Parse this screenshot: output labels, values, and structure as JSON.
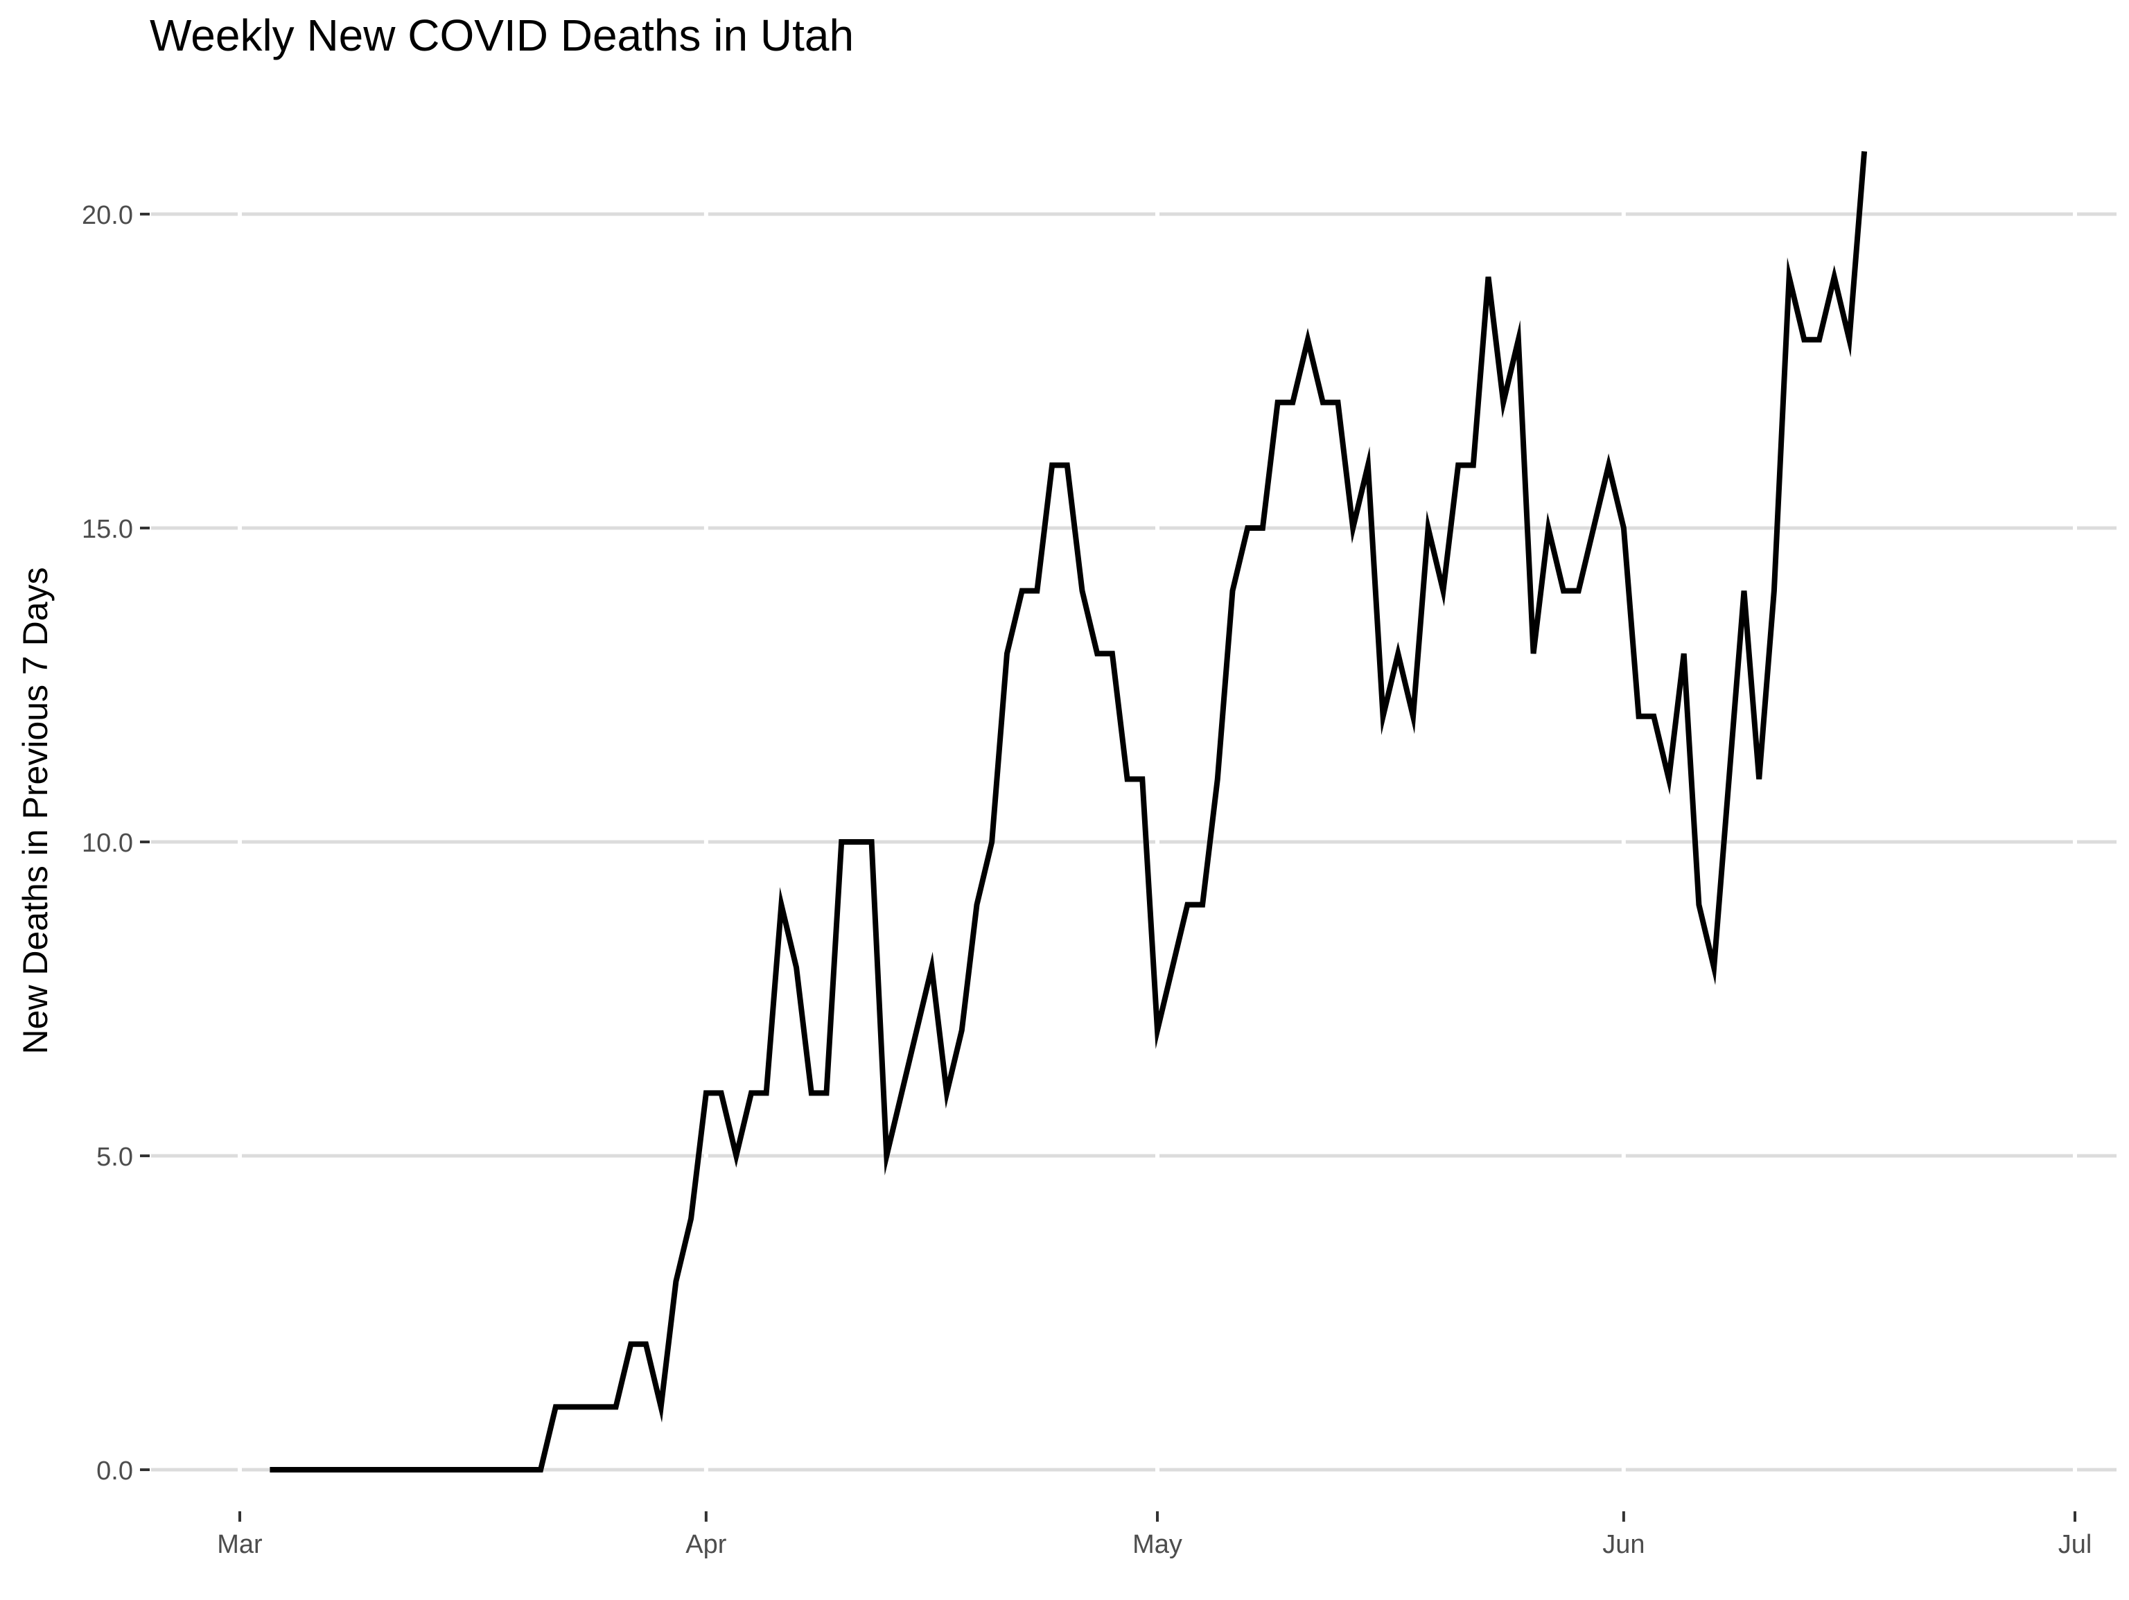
{
  "chart_data": {
    "type": "line",
    "title": "Weekly New COVID Deaths in Utah",
    "xlabel": "",
    "ylabel": "New Deaths in Previous 7 Days",
    "xlim": [
      "2020-02-27",
      "2020-07-04"
    ],
    "ylim": [
      0,
      21
    ],
    "x_ticks": [
      {
        "date": "2020-03-01",
        "label": "Mar"
      },
      {
        "date": "2020-04-01",
        "label": "Apr"
      },
      {
        "date": "2020-05-01",
        "label": "May"
      },
      {
        "date": "2020-06-01",
        "label": "Jun"
      },
      {
        "date": "2020-07-01",
        "label": "Jul"
      }
    ],
    "y_ticks": [
      {
        "value": 0,
        "label": "0.0"
      },
      {
        "value": 5,
        "label": "5.0"
      },
      {
        "value": 10,
        "label": "10.0"
      },
      {
        "value": 15,
        "label": "15.0"
      },
      {
        "value": 20,
        "label": "20.0"
      }
    ],
    "grid": true,
    "series": [
      {
        "color": "#000000",
        "x": [
          "2020-03-03",
          "2020-03-04",
          "2020-03-05",
          "2020-03-06",
          "2020-03-07",
          "2020-03-08",
          "2020-03-09",
          "2020-03-10",
          "2020-03-11",
          "2020-03-12",
          "2020-03-13",
          "2020-03-14",
          "2020-03-15",
          "2020-03-16",
          "2020-03-17",
          "2020-03-18",
          "2020-03-19",
          "2020-03-20",
          "2020-03-21",
          "2020-03-22",
          "2020-03-23",
          "2020-03-24",
          "2020-03-25",
          "2020-03-26",
          "2020-03-27",
          "2020-03-28",
          "2020-03-29",
          "2020-03-30",
          "2020-03-31",
          "2020-04-01",
          "2020-04-02",
          "2020-04-03",
          "2020-04-04",
          "2020-04-05",
          "2020-04-06",
          "2020-04-07",
          "2020-04-08",
          "2020-04-09",
          "2020-04-10",
          "2020-04-11",
          "2020-04-12",
          "2020-04-13",
          "2020-04-14",
          "2020-04-15",
          "2020-04-16",
          "2020-04-17",
          "2020-04-18",
          "2020-04-19",
          "2020-04-20",
          "2020-04-21",
          "2020-04-22",
          "2020-04-23",
          "2020-04-24",
          "2020-04-25",
          "2020-04-26",
          "2020-04-27",
          "2020-04-28",
          "2020-04-29",
          "2020-04-30",
          "2020-05-01",
          "2020-05-02",
          "2020-05-03",
          "2020-05-04",
          "2020-05-05",
          "2020-05-06",
          "2020-05-07",
          "2020-05-08",
          "2020-05-09",
          "2020-05-10",
          "2020-05-11",
          "2020-05-12",
          "2020-05-13",
          "2020-05-14",
          "2020-05-15",
          "2020-05-16",
          "2020-05-17",
          "2020-05-18",
          "2020-05-19",
          "2020-05-20",
          "2020-05-21",
          "2020-05-22",
          "2020-05-23",
          "2020-05-24",
          "2020-05-25",
          "2020-05-26",
          "2020-05-27",
          "2020-05-28",
          "2020-05-29",
          "2020-05-30",
          "2020-05-31",
          "2020-06-01",
          "2020-06-02",
          "2020-06-03",
          "2020-06-04",
          "2020-06-05",
          "2020-06-06",
          "2020-06-07",
          "2020-06-08",
          "2020-06-09",
          "2020-06-10",
          "2020-06-11",
          "2020-06-12",
          "2020-06-13",
          "2020-06-14",
          "2020-06-15",
          "2020-06-16",
          "2020-06-17"
        ],
        "y": [
          0,
          0,
          0,
          0,
          0,
          0,
          0,
          0,
          0,
          0,
          0,
          0,
          0,
          0,
          0,
          0,
          0,
          0,
          0,
          1,
          1,
          1,
          1,
          1,
          2,
          2,
          1,
          3,
          4,
          6,
          6,
          5,
          6,
          6,
          9,
          8,
          6,
          6,
          10,
          10,
          10,
          5,
          6,
          7,
          8,
          6,
          7,
          9,
          10,
          13,
          14,
          14,
          16,
          16,
          14,
          13,
          13,
          11,
          11,
          7,
          8,
          9,
          9,
          11,
          14,
          15,
          15,
          17,
          17,
          18,
          17,
          17,
          15,
          16,
          12,
          13,
          12,
          15,
          14,
          16,
          16,
          19,
          17,
          18,
          13,
          15,
          14,
          14,
          15,
          16,
          15,
          12,
          12,
          11,
          13,
          9,
          8,
          11,
          14,
          11,
          14,
          19,
          18,
          18,
          19,
          18,
          21
        ]
      }
    ]
  }
}
